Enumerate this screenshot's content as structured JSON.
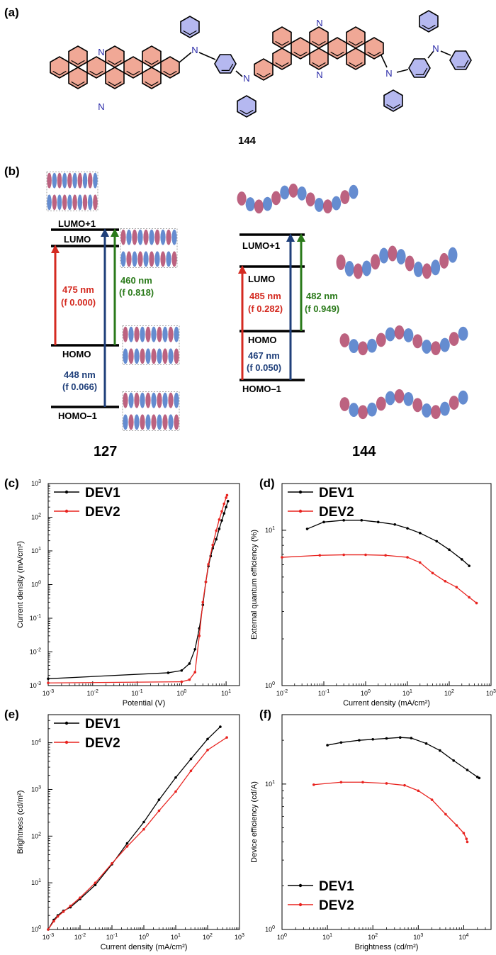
{
  "panels": {
    "a": "(a)",
    "b": "(b)",
    "c": "(c)",
    "d": "(d)",
    "e": "(e)",
    "f": "(f)"
  },
  "structure": {
    "compound": "144",
    "atom_n": "N"
  },
  "energy_levels": {
    "left": {
      "compound": "127",
      "levels": [
        "LUMO+1",
        "LUMO",
        "HOMO",
        "HOMO–1"
      ],
      "transitions": [
        {
          "nm": "475 nm",
          "f": "0.000",
          "color": "#d42a20"
        },
        {
          "nm": "460 nm",
          "f": "0.818",
          "color": "#2a7a1a"
        },
        {
          "nm": "448 nm",
          "f": "0.066",
          "color": "#1f3f7a"
        }
      ]
    },
    "right": {
      "compound": "144",
      "levels": [
        "LUMO+1",
        "LUMO",
        "HOMO",
        "HOMO–1"
      ],
      "transitions": [
        {
          "nm": "485 nm",
          "f": "0.282",
          "color": "#d42a20"
        },
        {
          "nm": "482 nm",
          "f": "0.949",
          "color": "#2a7a1a"
        },
        {
          "nm": "467 nm",
          "f": "0.050",
          "color": "#1f3f7a"
        }
      ]
    },
    "f_symbol": "f"
  },
  "colors": {
    "dev1": "#000000",
    "dev2": "#e8231f",
    "orbital_blue": "#4a78c8",
    "orbital_red": "#b0476a",
    "ring_red": "#f0a896",
    "ring_blue": "#b5b8f0"
  },
  "chart_data": [
    {
      "type": "line",
      "panel": "(c)",
      "xlabel": "Potential (V)",
      "ylabel": "Current density (mA/cm²)",
      "xscale": "log",
      "yscale": "log",
      "xlim": [
        0.001,
        20
      ],
      "ylim": [
        0.001,
        1000
      ],
      "xticks": [
        {
          "v": 0.001,
          "m": "10",
          "e": "-3"
        },
        {
          "v": 0.01,
          "m": "10",
          "e": "-2"
        },
        {
          "v": 0.1,
          "m": "10",
          "e": "-1"
        },
        {
          "v": 1,
          "m": "10",
          "e": "0"
        },
        {
          "v": 10,
          "m": "10",
          "e": "1"
        }
      ],
      "yticks": [
        {
          "v": 0.001,
          "m": "10",
          "e": "-3"
        },
        {
          "v": 0.01,
          "m": "10",
          "e": "-2"
        },
        {
          "v": 0.1,
          "m": "10",
          "e": "-1"
        },
        {
          "v": 1,
          "m": "10",
          "e": "0"
        },
        {
          "v": 10,
          "m": "10",
          "e": "1"
        },
        {
          "v": 100,
          "m": "10",
          "e": "2"
        },
        {
          "v": 1000,
          "m": "10",
          "e": "3"
        }
      ],
      "legend": "top-left",
      "series": [
        {
          "name": "DEV1",
          "color": "#000000",
          "x": [
            0.001,
            0.5,
            1.0,
            1.5,
            2.0,
            2.5,
            3.0,
            3.5,
            4.0,
            4.5,
            5.0,
            6.0,
            7.0,
            8.0,
            9.0,
            10.0,
            11.0
          ],
          "y": [
            0.0016,
            0.0024,
            0.0028,
            0.0045,
            0.012,
            0.05,
            0.25,
            1.2,
            3.5,
            7,
            12,
            22,
            45,
            80,
            130,
            200,
            300
          ]
        },
        {
          "name": "DEV2",
          "color": "#e8231f",
          "x": [
            0.001,
            1.0,
            1.5,
            2.0,
            2.5,
            3.0,
            3.5,
            4.0,
            5.0,
            6.0,
            7.0,
            8.0,
            9.0,
            10.0,
            10.5
          ],
          "y": [
            0.0012,
            0.0013,
            0.0015,
            0.0025,
            0.03,
            0.3,
            1.2,
            4,
            15,
            40,
            85,
            150,
            250,
            380,
            450
          ]
        }
      ]
    },
    {
      "type": "line",
      "panel": "(d)",
      "xlabel": "Current density (mA/cm²)",
      "ylabel": "External quantum efficiency (%)",
      "xscale": "log",
      "yscale": "log",
      "xlim": [
        0.01,
        1000
      ],
      "ylim": [
        1,
        20
      ],
      "xticks": [
        {
          "v": 0.01,
          "m": "10",
          "e": "-2"
        },
        {
          "v": 0.1,
          "m": "10",
          "e": "-1"
        },
        {
          "v": 1,
          "m": "10",
          "e": "0"
        },
        {
          "v": 10,
          "m": "10",
          "e": "1"
        },
        {
          "v": 100,
          "m": "10",
          "e": "2"
        },
        {
          "v": 1000,
          "m": "10",
          "e": "3"
        }
      ],
      "yticks": [
        {
          "v": 1,
          "m": "10",
          "e": "0"
        },
        {
          "v": 10,
          "m": "10",
          "e": "1"
        }
      ],
      "legend": "top-left",
      "series": [
        {
          "name": "DEV1",
          "color": "#000000",
          "x": [
            0.04,
            0.1,
            0.3,
            0.8,
            2,
            5,
            10,
            20,
            50,
            100,
            200,
            300
          ],
          "y": [
            10.2,
            11.3,
            11.6,
            11.6,
            11.3,
            10.9,
            10.3,
            9.6,
            8.5,
            7.5,
            6.5,
            5.9
          ]
        },
        {
          "name": "DEV2",
          "color": "#e8231f",
          "x": [
            0.01,
            0.08,
            0.3,
            1,
            3,
            10,
            20,
            40,
            80,
            150,
            300,
            450
          ],
          "y": [
            6.7,
            6.9,
            6.95,
            6.95,
            6.9,
            6.7,
            6.2,
            5.3,
            4.7,
            4.3,
            3.7,
            3.4
          ]
        }
      ]
    },
    {
      "type": "line",
      "panel": "(e)",
      "xlabel": "Current density (mA/cm²)",
      "ylabel": "Brightness (cd/m²)",
      "xscale": "log",
      "yscale": "log",
      "xlim": [
        0.001,
        1000
      ],
      "ylim": [
        1,
        40000
      ],
      "xticks": [
        {
          "v": 0.001,
          "m": "10",
          "e": "-3"
        },
        {
          "v": 0.01,
          "m": "10",
          "e": "-2"
        },
        {
          "v": 0.1,
          "m": "10",
          "e": "-1"
        },
        {
          "v": 1,
          "m": "10",
          "e": "0"
        },
        {
          "v": 10,
          "m": "10",
          "e": "1"
        },
        {
          "v": 100,
          "m": "10",
          "e": "2"
        },
        {
          "v": 1000,
          "m": "10",
          "e": "3"
        }
      ],
      "yticks": [
        {
          "v": 1,
          "m": "10",
          "e": "0"
        },
        {
          "v": 10,
          "m": "10",
          "e": "1"
        },
        {
          "v": 100,
          "m": "10",
          "e": "2"
        },
        {
          "v": 1000,
          "m": "10",
          "e": "3"
        },
        {
          "v": 10000,
          "m": "10",
          "e": "4"
        }
      ],
      "legend": "top-left",
      "series": [
        {
          "name": "DEV1",
          "color": "#000000",
          "x": [
            0.001,
            0.0015,
            0.002,
            0.003,
            0.005,
            0.01,
            0.03,
            0.1,
            0.3,
            1,
            3,
            10,
            30,
            100,
            250
          ],
          "y": [
            1.0,
            1.6,
            2.0,
            2.5,
            3.0,
            4.5,
            9,
            25,
            70,
            200,
            600,
            1800,
            4500,
            12000,
            22000
          ]
        },
        {
          "name": "DEV2",
          "color": "#e8231f",
          "x": [
            0.001,
            0.0015,
            0.002,
            0.003,
            0.005,
            0.01,
            0.03,
            0.1,
            0.3,
            1,
            3,
            10,
            30,
            100,
            400
          ],
          "y": [
            1.0,
            1.5,
            1.9,
            2.4,
            3.2,
            4.8,
            10,
            26,
            60,
            140,
            350,
            900,
            2500,
            7000,
            13000
          ]
        }
      ]
    },
    {
      "type": "line",
      "panel": "(f)",
      "xlabel": "Brightness (cd/m²)",
      "ylabel": "Device efficiency (cd/A)",
      "xscale": "log",
      "yscale": "log",
      "xlim": [
        1,
        40000
      ],
      "ylim": [
        1,
        30
      ],
      "xticks": [
        {
          "v": 1,
          "m": "10",
          "e": "0"
        },
        {
          "v": 10,
          "m": "10",
          "e": "1"
        },
        {
          "v": 100,
          "m": "10",
          "e": "2"
        },
        {
          "v": 1000,
          "m": "10",
          "e": "3"
        },
        {
          "v": 10000,
          "m": "10",
          "e": "4"
        }
      ],
      "yticks": [
        {
          "v": 1,
          "m": "10",
          "e": "0"
        },
        {
          "v": 10,
          "m": "10",
          "e": "1"
        }
      ],
      "legend": "bottom-left",
      "series": [
        {
          "name": "DEV1",
          "color": "#000000",
          "x": [
            10,
            20,
            50,
            100,
            200,
            400,
            700,
            1500,
            3000,
            6000,
            12000,
            20000,
            22000
          ],
          "y": [
            18.5,
            19.3,
            20.0,
            20.3,
            20.6,
            20.9,
            20.7,
            19.0,
            17.0,
            14.5,
            12.5,
            11.2,
            11.0
          ]
        },
        {
          "name": "DEV2",
          "color": "#e8231f",
          "x": [
            5,
            20,
            60,
            200,
            500,
            1000,
            2000,
            4000,
            7000,
            10000,
            11500,
            12000
          ],
          "y": [
            9.9,
            10.3,
            10.3,
            10.1,
            9.8,
            9.0,
            7.8,
            6.2,
            5.2,
            4.6,
            4.2,
            4.0
          ]
        }
      ]
    }
  ]
}
